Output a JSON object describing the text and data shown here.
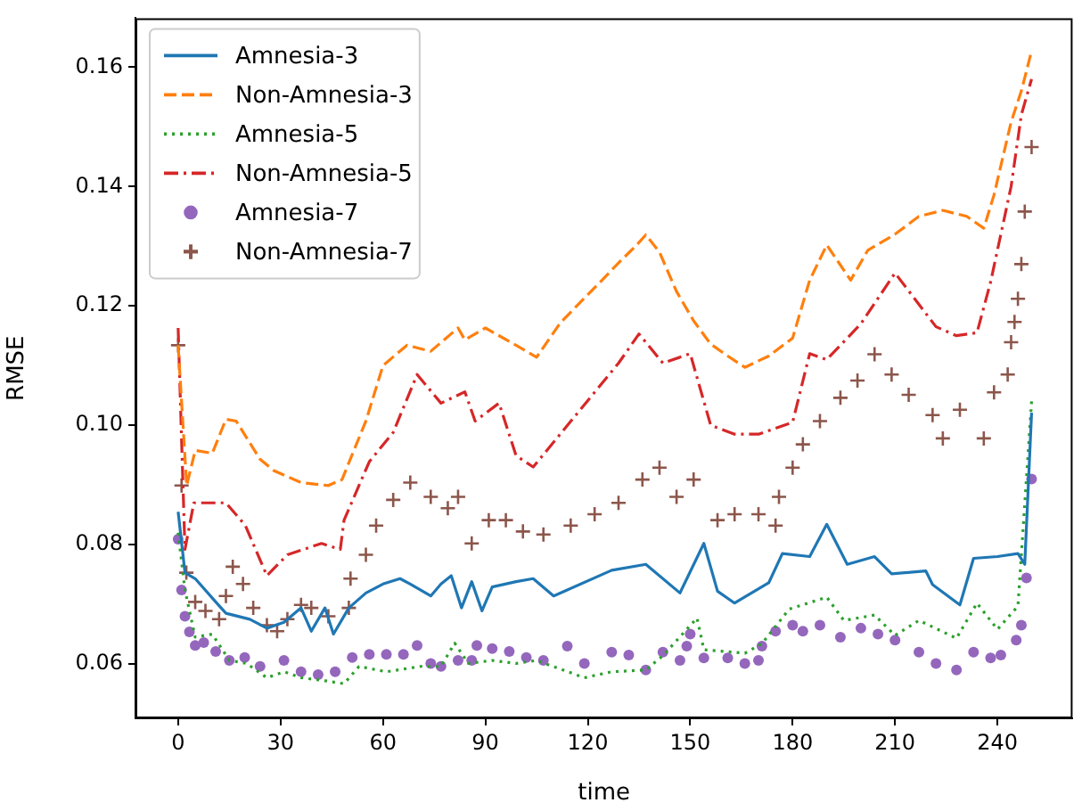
{
  "chart_data": {
    "type": "line",
    "xlabel": "time",
    "ylabel": "RMSE",
    "xlim": [
      -12.5,
      262
    ],
    "ylim": [
      0.0509,
      0.1682
    ],
    "xticks": [
      0,
      30,
      60,
      90,
      120,
      150,
      180,
      210,
      240
    ],
    "yticks": [
      {
        "value": 0.06,
        "label": "0.06"
      },
      {
        "value": 0.08,
        "label": "0.08"
      },
      {
        "value": 0.1,
        "label": "0.10"
      },
      {
        "value": 0.12,
        "label": "0.12"
      },
      {
        "value": 0.14,
        "label": "0.14"
      },
      {
        "value": 0.16,
        "label": "0.16"
      }
    ],
    "grid": false,
    "legend": "top left",
    "series": [
      {
        "name": "Amnesia-3",
        "color": "#1f77b4",
        "line_style": "solid",
        "x": [
          0,
          2,
          5,
          11,
          14,
          21,
          26,
          31,
          36,
          39,
          43,
          45.5,
          50,
          55,
          60,
          65,
          68,
          74,
          77,
          80,
          83,
          86,
          89,
          92,
          99,
          104,
          110,
          127,
          137,
          147,
          154,
          158,
          163,
          173,
          177,
          185,
          190,
          196,
          204,
          209,
          219,
          221,
          229,
          233,
          240,
          246,
          248,
          250
        ],
        "values": [
          0.0855,
          0.0753,
          0.0743,
          0.0704,
          0.0685,
          0.0675,
          0.066,
          0.067,
          0.0694,
          0.0655,
          0.0694,
          0.065,
          0.0694,
          0.0719,
          0.0734,
          0.0743,
          0.0734,
          0.0714,
          0.0734,
          0.0748,
          0.0694,
          0.0738,
          0.0689,
          0.0729,
          0.0738,
          0.0743,
          0.0714,
          0.0757,
          0.0767,
          0.0719,
          0.0802,
          0.0722,
          0.0702,
          0.0736,
          0.0785,
          0.078,
          0.0834,
          0.0767,
          0.078,
          0.0751,
          0.0756,
          0.0733,
          0.0699,
          0.0777,
          0.078,
          0.0785,
          0.0767,
          0.1021
        ]
      },
      {
        "name": "Non-Amnesia-3",
        "color": "#ff7f0e",
        "line_style": "dashed",
        "x": [
          0,
          2.5,
          5,
          10,
          14,
          17,
          24,
          28,
          36,
          44,
          48,
          55,
          60,
          67,
          74,
          82,
          84,
          90,
          99,
          105,
          112,
          124,
          129,
          134,
          137,
          141,
          146,
          151,
          156,
          161,
          166,
          173,
          180,
          185,
          190,
          197,
          202,
          210,
          217,
          224,
          231,
          236,
          239,
          244,
          247,
          250
        ],
        "values": [
          0.1134,
          0.0899,
          0.0958,
          0.0953,
          0.101,
          0.1007,
          0.0943,
          0.0924,
          0.0904,
          0.0899,
          0.0909,
          0.1007,
          0.11,
          0.1134,
          0.1124,
          0.1163,
          0.1143,
          0.1163,
          0.1134,
          0.1114,
          0.1172,
          0.1242,
          0.1272,
          0.13,
          0.1319,
          0.129,
          0.1224,
          0.1175,
          0.1136,
          0.1116,
          0.1097,
          0.1116,
          0.1146,
          0.1243,
          0.1302,
          0.1243,
          0.1293,
          0.132,
          0.135,
          0.136,
          0.135,
          0.133,
          0.1386,
          0.1508,
          0.156,
          0.1627
        ]
      },
      {
        "name": "Amnesia-5",
        "color": "#2ca02c",
        "line_style": "dotted",
        "x": [
          0,
          2,
          5,
          10,
          15,
          20,
          26,
          31,
          36,
          43,
          48.6,
          53,
          61,
          71,
          77,
          81,
          85,
          92,
          99,
          105,
          119,
          127,
          137,
          142,
          152,
          154,
          166,
          171,
          179,
          190,
          195,
          204,
          210,
          217,
          228,
          234,
          240,
          246,
          250
        ],
        "values": [
          0.082,
          0.0724,
          0.0645,
          0.065,
          0.0606,
          0.0601,
          0.0577,
          0.0587,
          0.0577,
          0.0572,
          0.0567,
          0.0596,
          0.0587,
          0.0596,
          0.0596,
          0.0635,
          0.0601,
          0.0606,
          0.0601,
          0.0606,
          0.0577,
          0.0587,
          0.059,
          0.0614,
          0.0677,
          0.0624,
          0.0618,
          0.0634,
          0.0692,
          0.0712,
          0.0673,
          0.0682,
          0.0648,
          0.0673,
          0.0643,
          0.0702,
          0.0658,
          0.0697,
          0.104
        ]
      },
      {
        "name": "Non-Amnesia-5",
        "color": "#d62728",
        "line_style": "dashdot",
        "x": [
          0,
          2,
          4.6,
          14,
          19.7,
          26,
          32,
          42,
          47.5,
          48.6,
          56,
          63,
          70,
          77,
          84,
          87,
          94,
          99,
          104,
          129,
          135,
          142,
          150,
          156,
          163,
          170,
          180,
          185,
          190,
          200,
          210,
          216,
          222,
          228,
          234,
          238,
          244,
          247,
          250
        ],
        "values": [
          0.1163,
          0.0792,
          0.087,
          0.087,
          0.0832,
          0.0748,
          0.0783,
          0.0802,
          0.0792,
          0.0841,
          0.0939,
          0.0988,
          0.1085,
          0.1037,
          0.1056,
          0.1007,
          0.1037,
          0.0949,
          0.093,
          0.1104,
          0.1153,
          0.1104,
          0.112,
          0.1,
          0.0985,
          0.0985,
          0.1005,
          0.112,
          0.111,
          0.117,
          0.1255,
          0.121,
          0.1165,
          0.115,
          0.1155,
          0.124,
          0.14,
          0.152,
          0.158
        ]
      },
      {
        "name": "Amnesia-7",
        "color": "#9467bd",
        "type": "scatter",
        "marker": "circle",
        "x": [
          0,
          1,
          2,
          3.3,
          5,
          7.5,
          11,
          15,
          19.5,
          24,
          31,
          36,
          41,
          46,
          51,
          56,
          61,
          66,
          70,
          74,
          77,
          82,
          86,
          87.5,
          92,
          97,
          102,
          107,
          114,
          119,
          127,
          132,
          137,
          142,
          147,
          149,
          150,
          154,
          161,
          166,
          170,
          171,
          175,
          180,
          183,
          188,
          194,
          200,
          205,
          210,
          217,
          222,
          228,
          233,
          238,
          241,
          245.5,
          247,
          248.5,
          250
        ],
        "values": [
          0.0809,
          0.0724,
          0.068,
          0.0654,
          0.0631,
          0.0636,
          0.0621,
          0.0606,
          0.0611,
          0.0596,
          0.0606,
          0.0587,
          0.0582,
          0.0587,
          0.0611,
          0.0616,
          0.0616,
          0.0616,
          0.0631,
          0.0601,
          0.0596,
          0.0606,
          0.0606,
          0.0631,
          0.0626,
          0.0621,
          0.0611,
          0.0606,
          0.063,
          0.0601,
          0.062,
          0.0615,
          0.059,
          0.062,
          0.0606,
          0.063,
          0.065,
          0.061,
          0.061,
          0.0601,
          0.0606,
          0.063,
          0.0655,
          0.0665,
          0.0655,
          0.0665,
          0.0645,
          0.066,
          0.065,
          0.064,
          0.062,
          0.0601,
          0.059,
          0.062,
          0.061,
          0.0615,
          0.064,
          0.0665,
          0.0744,
          0.091
        ]
      },
      {
        "name": "Non-Amnesia-7",
        "color": "#8c564b",
        "type": "scatter",
        "marker": "cross",
        "x": [
          0,
          1,
          2.4,
          5,
          8,
          12,
          14,
          16,
          19,
          22,
          26,
          29,
          32,
          36,
          39,
          44,
          50,
          50.5,
          55,
          58,
          63,
          68,
          74,
          79,
          82,
          86,
          91,
          96,
          101,
          107,
          115,
          122,
          129,
          136,
          141,
          146,
          151,
          158,
          163,
          170,
          175,
          176,
          180,
          183,
          188,
          194,
          199,
          204,
          209,
          214,
          221,
          224,
          229,
          236,
          239,
          243,
          244,
          245,
          246,
          247,
          248,
          250
        ],
        "values": [
          0.1134,
          0.0899,
          0.0753,
          0.0704,
          0.0689,
          0.0675,
          0.0714,
          0.0763,
          0.0734,
          0.0694,
          0.0665,
          0.0655,
          0.0675,
          0.0699,
          0.0694,
          0.068,
          0.0694,
          0.0743,
          0.0783,
          0.0832,
          0.0875,
          0.0904,
          0.088,
          0.0861,
          0.088,
          0.0802,
          0.0841,
          0.0841,
          0.0822,
          0.0817,
          0.0832,
          0.0851,
          0.087,
          0.0909,
          0.0929,
          0.088,
          0.0909,
          0.0841,
          0.0851,
          0.0851,
          0.0832,
          0.088,
          0.0929,
          0.0968,
          0.1007,
          0.1046,
          0.1075,
          0.1119,
          0.1085,
          0.1051,
          0.1017,
          0.0978,
          0.1026,
          0.0978,
          0.1055,
          0.1085,
          0.1139,
          0.1173,
          0.1212,
          0.127,
          0.1358,
          0.1466
        ]
      }
    ]
  }
}
